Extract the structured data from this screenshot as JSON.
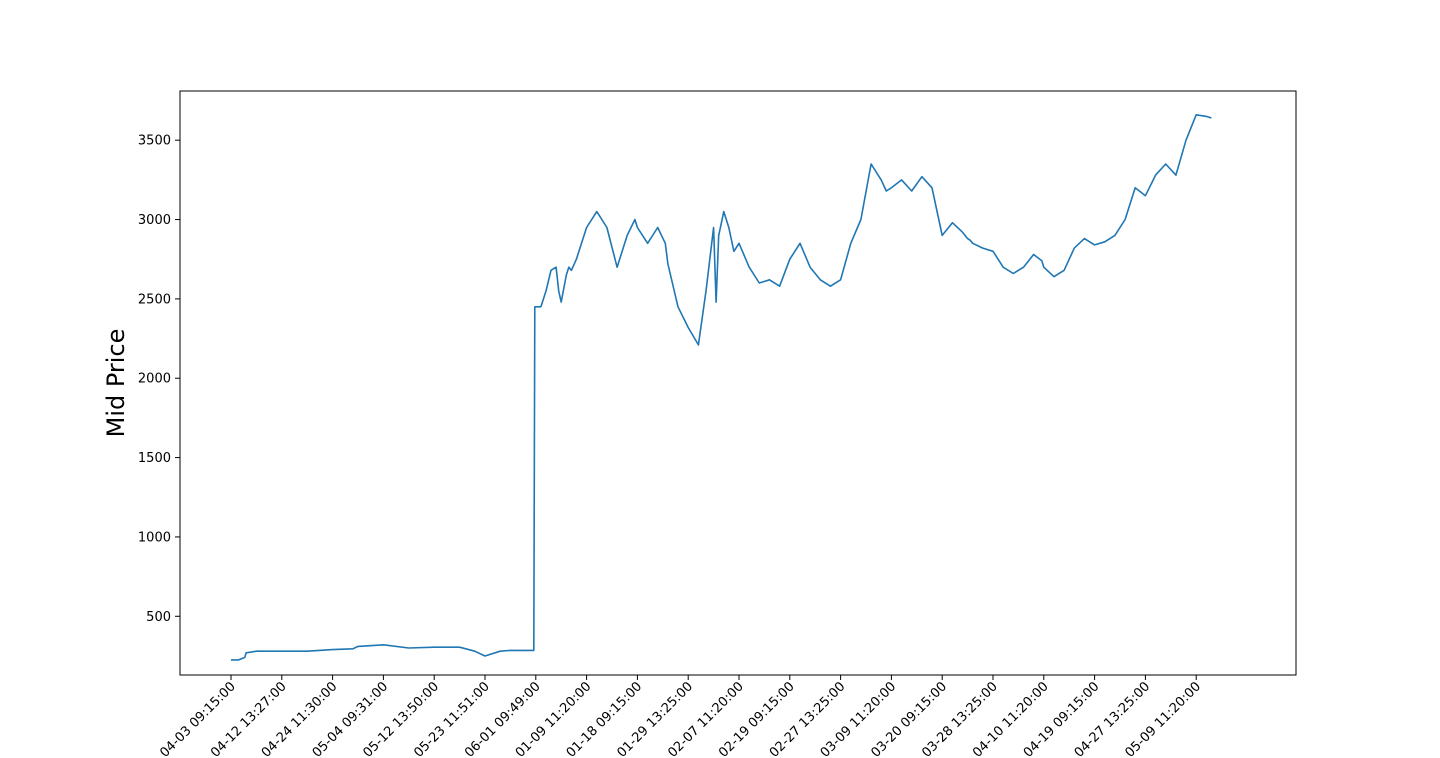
{
  "chart_data": {
    "type": "line",
    "title": "",
    "xlabel": "",
    "ylabel": "Mid Price",
    "ylim": [
      130,
      3810
    ],
    "yticks": [
      500,
      1000,
      1500,
      2000,
      2500,
      3000,
      3500
    ],
    "ytick_labels": [
      "500",
      "1000",
      "1500",
      "2000",
      "2500",
      "3000",
      "3500"
    ],
    "xtick_labels": [
      "04-03 09:15:00",
      "04-12 13:27:00",
      "04-24 11:30:00",
      "05-04 09:31:00",
      "05-12 13:50:00",
      "05-23 11:51:00",
      "06-01 09:49:00",
      "01-09 11:20:00",
      "01-18 09:15:00",
      "01-29 13:25:00",
      "02-07 11:20:00",
      "02-19 09:15:00",
      "02-27 13:25:00",
      "03-09 11:20:00",
      "03-20 09:15:00",
      "03-28 13:25:00",
      "04-10 11:20:00",
      "04-19 09:15:00",
      "04-27 13:25:00",
      "05-09 11:20:00"
    ],
    "grid": false,
    "legend": "none",
    "line_color": "#1f77b4",
    "series": [
      {
        "x": [
          0,
          0.15,
          0.27,
          0.3,
          0.5,
          1.0,
          1.5,
          2.0,
          2.4,
          2.5,
          3.0,
          3.5,
          4.0,
          4.5,
          4.8,
          5.0,
          5.3,
          5.5,
          5.8,
          5.96,
          5.98,
          6.05,
          6.1,
          6.2,
          6.3,
          6.4,
          6.45,
          6.5,
          6.6,
          6.65,
          6.7,
          6.8,
          6.9,
          7.0,
          7.2,
          7.4,
          7.6,
          7.8,
          7.95,
          8.0,
          8.2,
          8.4,
          8.55,
          8.6,
          8.8,
          9.0,
          9.2,
          9.35,
          9.5,
          9.55,
          9.6,
          9.7,
          9.8,
          9.9,
          10.0,
          10.2,
          10.4,
          10.6,
          10.8,
          11.0,
          11.2,
          11.4,
          11.6,
          11.8,
          12.0,
          12.2,
          12.4,
          12.6,
          12.8,
          12.9,
          13.0,
          13.2,
          13.4,
          13.6,
          13.8,
          14.0,
          14.2,
          14.4,
          14.5,
          14.55,
          14.6,
          14.8,
          15.0,
          15.2,
          15.4,
          15.6,
          15.8,
          15.96,
          16.0,
          16.2,
          16.4,
          16.6,
          16.8,
          17.0,
          17.2,
          17.4,
          17.6,
          17.8,
          18.0,
          18.2,
          18.4,
          18.6,
          18.8,
          19.0,
          19.2,
          19.3
        ],
        "y": [
          225,
          225,
          240,
          270,
          280,
          280,
          280,
          290,
          295,
          310,
          320,
          300,
          305,
          305,
          280,
          250,
          280,
          285,
          285,
          285,
          2450,
          2450,
          2450,
          2550,
          2680,
          2700,
          2550,
          2480,
          2650,
          2700,
          2680,
          2750,
          2850,
          2950,
          3050,
          2950,
          2700,
          2900,
          3000,
          2950,
          2850,
          2950,
          2850,
          2720,
          2450,
          2320,
          2210,
          2550,
          2950,
          2480,
          2900,
          3050,
          2950,
          2800,
          2850,
          2700,
          2600,
          2620,
          2580,
          2750,
          2850,
          2700,
          2620,
          2580,
          2620,
          2850,
          3000,
          3350,
          3250,
          3180,
          3200,
          3250,
          3180,
          3270,
          3200,
          2900,
          2980,
          2920,
          2880,
          2870,
          2850,
          2820,
          2800,
          2700,
          2660,
          2700,
          2780,
          2740,
          2700,
          2640,
          2680,
          2820,
          2880,
          2840,
          2860,
          2900,
          3000,
          3200,
          3150,
          3280,
          3350,
          3280,
          3500,
          3660,
          3650,
          3640
        ]
      }
    ]
  }
}
